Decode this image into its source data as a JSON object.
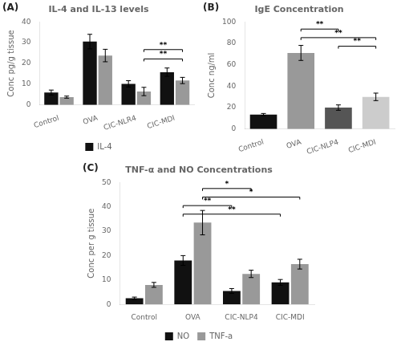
{
  "chart_data": [
    {
      "type": "bar",
      "panel": "(A)",
      "title": "IL-4 and IL-13 levels",
      "ylabel": "Conc pg/g tissue",
      "categories": [
        "Control",
        "OVA",
        "CIC-NLR4",
        "CIC-MDI"
      ],
      "series": [
        {
          "name": "IL-4",
          "color": "#111111",
          "values": [
            6.0,
            30.5,
            10.2,
            15.8
          ],
          "errors": [
            1.2,
            3.5,
            1.5,
            2.0
          ]
        },
        {
          "color": "#999999",
          "values": [
            3.8,
            23.8,
            6.5,
            11.8
          ],
          "errors": [
            0.5,
            3.0,
            2.0,
            1.5
          ]
        }
      ],
      "ylim": [
        0,
        40
      ],
      "yticks": [
        0,
        10,
        20,
        30,
        40
      ],
      "grid": false,
      "legend": "bottom",
      "annotations": [
        {
          "text": "**",
          "from": "CIC-NLR4",
          "to": "CIC-MDI",
          "series": 1,
          "y": 25.5
        },
        {
          "text": "**",
          "from": "CIC-NLR4",
          "to": "CIC-MDI",
          "series": 1,
          "y": 21.0
        }
      ]
    },
    {
      "type": "bar",
      "panel": "(B)",
      "title": "IgE Concentration",
      "ylabel": "Conc ng/ml",
      "categories": [
        "Control",
        "OVA",
        "CIC-NLP4",
        "CIC-MDI"
      ],
      "values": [
        13.5,
        71.0,
        20.0,
        30.0
      ],
      "errors": [
        1.0,
        7.0,
        2.5,
        3.5
      ],
      "colors": [
        "#111111",
        "#999999",
        "#555555",
        "#cccccc"
      ],
      "ylim": [
        0,
        100
      ],
      "yticks": [
        0,
        20,
        40,
        60,
        80,
        100
      ],
      "grid": false,
      "annotations": [
        {
          "text": "**",
          "from": "OVA",
          "to": "CIC-NLP4",
          "y": 91
        },
        {
          "text": "**",
          "from": "OVA",
          "to": "CIC-MDI",
          "y": 83
        },
        {
          "text": "**",
          "from": "CIC-NLP4",
          "to": "CIC-MDI",
          "y": 75
        }
      ]
    },
    {
      "type": "bar",
      "panel": "(C)",
      "title": "TNF-α and NO Concentrations",
      "ylabel": "Conc per g tissue",
      "categories": [
        "Control",
        "OVA",
        "CIC-NLP4",
        "CIC-MDI"
      ],
      "series": [
        {
          "name": "NO",
          "color": "#111111",
          "values": [
            2.5,
            18.0,
            5.5,
            9.0
          ],
          "errors": [
            0.5,
            2.0,
            1.0,
            1.2
          ]
        },
        {
          "name": "TNF-a",
          "color": "#999999",
          "values": [
            8.0,
            33.5,
            12.5,
            16.5
          ],
          "errors": [
            1.0,
            5.0,
            1.5,
            2.0
          ]
        }
      ],
      "ylim": [
        0,
        50
      ],
      "yticks": [
        0,
        10,
        20,
        30,
        40,
        50
      ],
      "grid": false,
      "legend": "bottom",
      "annotations": [
        {
          "text": "*",
          "from": "OVA",
          "to": "CIC-NLP4",
          "series": 1,
          "y": 46.5
        },
        {
          "text": "*",
          "from": "OVA",
          "to": "CIC-MDI",
          "series": 1,
          "y": 43.0
        },
        {
          "text": "**",
          "from": "OVA",
          "to": "CIC-NLP4",
          "series": 0,
          "y": 39.5
        },
        {
          "text": "**",
          "from": "OVA",
          "to": "CIC-MDI",
          "series": 0,
          "y": 36.0
        }
      ]
    }
  ]
}
